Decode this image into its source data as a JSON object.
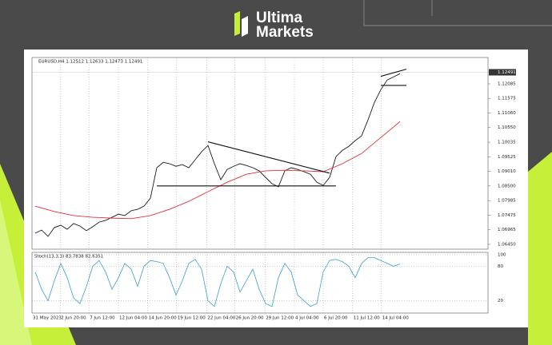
{
  "brand": {
    "word1": "Ultima",
    "word2": "Markets"
  },
  "chart_data": {
    "type": "line",
    "title": "EURUSD,H4 1.12512 1.12633 1.12473 1.12491",
    "last_price": 1.12491,
    "xlim": [
      -0.5,
      70.75
    ],
    "xticks": [
      {
        "value": -0.5,
        "label": "31 May 2023"
      },
      {
        "value": 3.9,
        "label": "2 Jun 20:00"
      },
      {
        "value": 8.4,
        "label": "7 Jun 12:00"
      },
      {
        "value": 13,
        "label": "12 Jun 04:00"
      },
      {
        "value": 17.6,
        "label": "14 Jun 20:00"
      },
      {
        "value": 22.1,
        "label": "19 Jun 12:00"
      },
      {
        "value": 26.8,
        "label": "22 Jun 04:00"
      },
      {
        "value": 31.2,
        "label": "26 Jun 20:00"
      },
      {
        "value": 35.9,
        "label": "29 Jun 12:00"
      },
      {
        "value": 40.5,
        "label": "4 Jul 04:00"
      },
      {
        "value": 45,
        "label": "6 Jul 20:00"
      },
      {
        "value": 49.6,
        "label": "11 Jul 12:00"
      },
      {
        "value": 54.1,
        "label": "14 Jul 04:00"
      }
    ],
    "ylim": [
      1.0628,
      1.1301
    ],
    "yticks": [
      1.12085,
      1.11575,
      {
        "value": 1.1106,
        "label": "1.11060"
      },
      {
        "value": 1.1055,
        "label": "1.10550"
      },
      1.10035,
      1.09525,
      {
        "value": 1.0901,
        "label": "1.09010"
      },
      {
        "value": 1.085,
        "label": "1.08500"
      },
      1.07985,
      1.07475,
      1.06965,
      {
        "value": 1.0645,
        "label": "1.06450"
      }
    ],
    "series": [
      {
        "name": "EURUSD",
        "color": "#1a1a1a",
        "x": [
          0,
          1,
          2,
          3,
          4,
          5,
          6,
          7,
          8,
          9,
          10,
          11,
          12,
          13,
          14,
          15,
          16,
          17,
          18,
          19,
          20,
          21,
          22,
          23,
          24,
          25,
          26,
          27,
          28,
          29,
          30,
          31,
          32,
          33,
          34,
          35,
          36,
          37,
          38,
          39,
          40,
          41,
          42,
          43,
          44,
          45,
          46,
          47,
          48,
          49,
          50,
          51,
          52,
          53,
          54,
          55,
          56,
          57
        ],
        "values": [
          1.0684,
          1.0695,
          1.0673,
          1.0704,
          1.0712,
          1.0698,
          1.0718,
          1.0709,
          1.0693,
          1.0707,
          1.0723,
          1.0729,
          1.074,
          1.0751,
          1.0746,
          1.0763,
          1.0768,
          1.0779,
          1.0807,
          1.0914,
          1.0933,
          1.0928,
          1.0919,
          1.0925,
          1.0914,
          1.0942,
          1.097,
          1.0992,
          1.0928,
          1.0872,
          1.0908,
          1.0919,
          1.0928,
          1.0922,
          1.0914,
          1.0903,
          1.088,
          1.0858,
          1.0847,
          1.0903,
          1.0914,
          1.0908,
          1.09,
          1.0891,
          1.0863,
          1.0852,
          1.088,
          1.0953,
          1.0975,
          1.0989,
          1.1009,
          1.1026,
          1.1082,
          1.1143,
          1.1188,
          1.1222,
          1.1233,
          1.1244
        ]
      },
      {
        "name": "MA",
        "color": "#e0303a",
        "x": [
          0,
          3,
          6,
          9,
          12,
          15,
          18,
          21,
          24,
          27,
          30,
          33,
          36,
          39,
          42,
          45,
          48,
          51,
          54,
          57
        ],
        "values": [
          1.0779,
          1.076,
          1.0746,
          1.074,
          1.0737,
          1.0735,
          1.0746,
          1.0768,
          1.0796,
          1.083,
          1.0863,
          1.0891,
          1.0903,
          1.0905,
          1.0903,
          1.09,
          1.0928,
          1.0964,
          1.102,
          1.1076
        ]
      }
    ],
    "trendlines": [
      {
        "x": [
          27,
          46
        ],
        "y": [
          1.1005,
          1.0895
        ]
      },
      {
        "x": [
          19,
          47
        ],
        "y": [
          1.085,
          1.085
        ]
      },
      {
        "x": [
          54,
          58
        ],
        "y": [
          1.1235,
          1.126
        ]
      },
      {
        "x": [
          54,
          58
        ],
        "y": [
          1.1203,
          1.1203
        ]
      }
    ],
    "stoch": {
      "title": "Stoch(13,3,3) 83.7838 82.6351",
      "color": "#3aa0c8",
      "ylim": [
        0,
        100
      ],
      "yticks": [
        100,
        80,
        20
      ],
      "values": [
        70,
        40,
        20,
        55,
        85,
        60,
        25,
        15,
        45,
        80,
        90,
        70,
        40,
        60,
        85,
        75,
        45,
        80,
        90,
        88,
        85,
        60,
        30,
        55,
        85,
        92,
        75,
        20,
        10,
        50,
        80,
        70,
        35,
        55,
        75,
        40,
        15,
        10,
        60,
        85,
        70,
        30,
        20,
        10,
        15,
        70,
        90,
        92,
        88,
        80,
        60,
        85,
        95,
        95,
        90,
        85,
        80,
        84
      ]
    }
  }
}
